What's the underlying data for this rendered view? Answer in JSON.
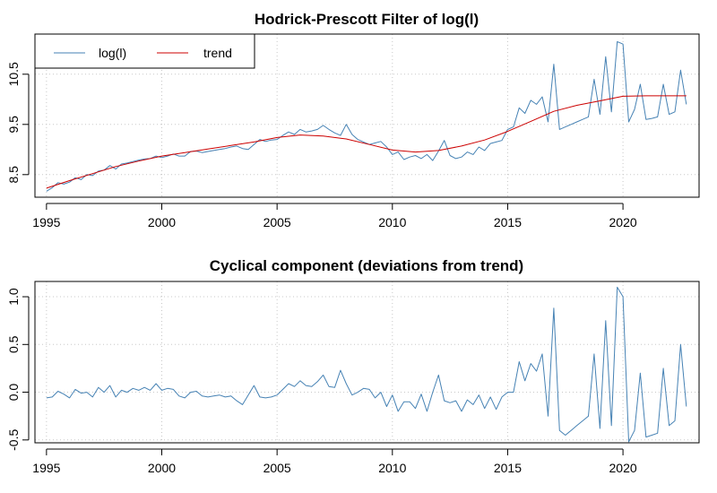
{
  "colors": {
    "series": "#4682b4",
    "trend": "#cc0000",
    "grid": "#c8c8c8",
    "axis": "#000000"
  },
  "chart_data": [
    {
      "type": "line",
      "title": "Hodrick-Prescott Filter of log(l)",
      "xlabel": "",
      "ylabel": "",
      "xlim": [
        1994.5,
        2023.3
      ],
      "ylim": [
        8.05,
        11.3
      ],
      "grid": true,
      "legend_position": "top-left",
      "x_ticks": [
        "1995",
        "2000",
        "2005",
        "2010",
        "2015",
        "2020"
      ],
      "y_ticks": [
        "8.5",
        "9.5",
        "10.5"
      ],
      "series": [
        {
          "name": "log(l)",
          "color": "#4682b4",
          "x": [
            1995.0,
            1995.25,
            1995.5,
            1995.75,
            1996.0,
            1996.25,
            1996.5,
            1996.75,
            1997.0,
            1997.25,
            1997.5,
            1997.75,
            1998.0,
            1998.25,
            1998.5,
            1998.75,
            1999.0,
            1999.25,
            1999.5,
            1999.75,
            2000.0,
            2000.25,
            2000.5,
            2000.75,
            2001.0,
            2001.25,
            2001.5,
            2001.75,
            2002.0,
            2002.25,
            2002.5,
            2002.75,
            2003.0,
            2003.25,
            2003.5,
            2003.75,
            2004.0,
            2004.25,
            2004.5,
            2004.75,
            2005.0,
            2005.25,
            2005.5,
            2005.75,
            2006.0,
            2006.25,
            2006.5,
            2006.75,
            2007.0,
            2007.25,
            2007.5,
            2007.75,
            2008.0,
            2008.25,
            2008.5,
            2008.75,
            2009.0,
            2009.25,
            2009.5,
            2009.75,
            2010.0,
            2010.25,
            2010.5,
            2010.75,
            2011.0,
            2011.25,
            2011.5,
            2011.75,
            2012.0,
            2012.25,
            2012.5,
            2012.75,
            2013.0,
            2013.25,
            2013.5,
            2013.75,
            2014.0,
            2014.25,
            2014.5,
            2014.75,
            2015.0,
            2015.25,
            2015.5,
            2015.75,
            2016.0,
            2016.25,
            2016.5,
            2016.75,
            2017.0,
            2017.25,
            2017.5,
            2017.75,
            2018.0,
            2018.25,
            2018.5,
            2018.75,
            2019.0,
            2019.25,
            2019.5,
            2019.75,
            2020.0,
            2020.25,
            2020.5,
            2020.75,
            2021.0,
            2021.25,
            2021.5,
            2021.75,
            2022.0,
            2022.25,
            2022.5,
            2022.75
          ],
          "values": [
            8.17,
            8.24,
            8.34,
            8.31,
            8.35,
            8.44,
            8.4,
            8.5,
            8.48,
            8.57,
            8.59,
            8.68,
            8.61,
            8.71,
            8.73,
            8.76,
            8.79,
            8.81,
            8.82,
            8.87,
            8.84,
            8.87,
            8.91,
            8.87,
            8.87,
            8.96,
            8.97,
            8.94,
            8.96,
            8.98,
            9.0,
            9.02,
            9.05,
            9.07,
            9.02,
            9.0,
            9.1,
            9.2,
            9.16,
            9.19,
            9.2,
            9.28,
            9.35,
            9.3,
            9.4,
            9.35,
            9.37,
            9.4,
            9.48,
            9.4,
            9.33,
            9.28,
            9.5,
            9.3,
            9.2,
            9.15,
            9.1,
            9.13,
            9.16,
            9.05,
            8.9,
            8.95,
            8.8,
            8.85,
            8.88,
            8.82,
            8.9,
            8.78,
            8.97,
            9.18,
            8.88,
            8.82,
            8.85,
            8.95,
            8.9,
            9.05,
            8.98,
            9.12,
            9.15,
            9.18,
            9.4,
            9.45,
            9.83,
            9.72,
            9.98,
            9.9,
            10.05,
            9.55,
            10.7,
            9.4,
            9.45,
            9.5,
            9.55,
            9.6,
            9.65,
            10.4,
            9.7,
            10.85,
            9.75,
            11.15,
            11.1,
            9.55,
            9.8,
            10.3,
            9.6,
            9.62,
            9.65,
            10.3,
            9.7,
            9.75,
            10.58,
            9.9
          ]
        },
        {
          "name": "trend",
          "color": "#cc0000",
          "x": [
            1995.0,
            1996.0,
            1997.0,
            1998.0,
            1999.0,
            2000.0,
            2001.0,
            2002.0,
            2003.0,
            2004.0,
            2005.0,
            2006.0,
            2007.0,
            2008.0,
            2009.0,
            2010.0,
            2011.0,
            2012.0,
            2013.0,
            2014.0,
            2015.0,
            2016.0,
            2017.0,
            2018.0,
            2019.0,
            2020.0,
            2021.0,
            2022.0,
            2022.75
          ],
          "values": [
            8.23,
            8.38,
            8.52,
            8.66,
            8.77,
            8.87,
            8.94,
            9.01,
            9.08,
            9.15,
            9.24,
            9.29,
            9.27,
            9.21,
            9.1,
            8.99,
            8.95,
            8.98,
            9.07,
            9.19,
            9.36,
            9.56,
            9.76,
            9.88,
            9.97,
            10.06,
            10.07,
            10.07,
            10.07
          ]
        }
      ]
    },
    {
      "type": "line",
      "title": "Cyclical component (deviations from trend)",
      "xlabel": "",
      "ylabel": "",
      "xlim": [
        1994.5,
        2023.3
      ],
      "ylim": [
        -0.53,
        1.16
      ],
      "grid": true,
      "x_ticks": [
        "1995",
        "2000",
        "2005",
        "2010",
        "2015",
        "2020"
      ],
      "y_ticks": [
        "-0.5",
        "0.0",
        "0.5",
        "1.0"
      ],
      "series": [
        {
          "color": "#4682b4",
          "x": [
            1995.0,
            1995.25,
            1995.5,
            1995.75,
            1996.0,
            1996.25,
            1996.5,
            1996.75,
            1997.0,
            1997.25,
            1997.5,
            1997.75,
            1998.0,
            1998.25,
            1998.5,
            1998.75,
            1999.0,
            1999.25,
            1999.5,
            1999.75,
            2000.0,
            2000.25,
            2000.5,
            2000.75,
            2001.0,
            2001.25,
            2001.5,
            2001.75,
            2002.0,
            2002.25,
            2002.5,
            2002.75,
            2003.0,
            2003.25,
            2003.5,
            2003.75,
            2004.0,
            2004.25,
            2004.5,
            2004.75,
            2005.0,
            2005.25,
            2005.5,
            2005.75,
            2006.0,
            2006.25,
            2006.5,
            2006.75,
            2007.0,
            2007.25,
            2007.5,
            2007.75,
            2008.0,
            2008.25,
            2008.5,
            2008.75,
            2009.0,
            2009.25,
            2009.5,
            2009.75,
            2010.0,
            2010.25,
            2010.5,
            2010.75,
            2011.0,
            2011.25,
            2011.5,
            2011.75,
            2012.0,
            2012.25,
            2012.5,
            2012.75,
            2013.0,
            2013.25,
            2013.5,
            2013.75,
            2014.0,
            2014.25,
            2014.5,
            2014.75,
            2015.0,
            2015.25,
            2015.5,
            2015.75,
            2016.0,
            2016.25,
            2016.5,
            2016.75,
            2017.0,
            2017.25,
            2017.5,
            2017.75,
            2018.0,
            2018.25,
            2018.5,
            2018.75,
            2019.0,
            2019.25,
            2019.5,
            2019.75,
            2020.0,
            2020.25,
            2020.5,
            2020.75,
            2021.0,
            2021.25,
            2021.5,
            2021.75,
            2022.0,
            2022.25,
            2022.5,
            2022.75
          ],
          "values": [
            -0.06,
            -0.05,
            0.01,
            -0.02,
            -0.06,
            0.03,
            -0.01,
            0.0,
            -0.05,
            0.05,
            0.0,
            0.07,
            -0.05,
            0.02,
            0.0,
            0.04,
            0.02,
            0.05,
            0.02,
            0.09,
            0.02,
            0.04,
            0.03,
            -0.04,
            -0.06,
            0.0,
            0.01,
            -0.04,
            -0.05,
            -0.04,
            -0.03,
            -0.05,
            -0.04,
            -0.09,
            -0.13,
            -0.03,
            0.07,
            -0.05,
            -0.06,
            -0.05,
            -0.03,
            0.03,
            0.09,
            0.06,
            0.12,
            0.07,
            0.06,
            0.11,
            0.18,
            0.06,
            0.05,
            0.23,
            0.09,
            -0.03,
            0.0,
            0.04,
            0.03,
            -0.06,
            0.0,
            -0.15,
            -0.03,
            -0.2,
            -0.1,
            -0.1,
            -0.17,
            -0.02,
            -0.2,
            0.0,
            0.18,
            -0.09,
            -0.11,
            -0.09,
            -0.2,
            -0.08,
            -0.13,
            -0.03,
            -0.17,
            -0.05,
            -0.18,
            -0.05,
            0.0,
            0.0,
            0.32,
            0.12,
            0.3,
            0.22,
            0.4,
            -0.25,
            0.88,
            -0.4,
            -0.45,
            -0.4,
            -0.35,
            -0.3,
            -0.25,
            0.4,
            -0.38,
            0.75,
            -0.35,
            1.1,
            1.0,
            -0.52,
            -0.4,
            0.2,
            -0.47,
            -0.45,
            -0.43,
            0.25,
            -0.35,
            -0.3,
            0.5,
            -0.15
          ]
        }
      ]
    }
  ]
}
